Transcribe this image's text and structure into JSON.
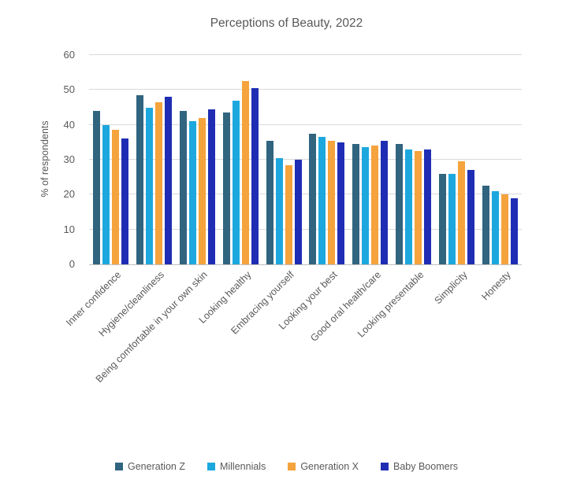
{
  "chart_data": {
    "type": "bar",
    "title": "Perceptions of Beauty, 2022",
    "xlabel": "",
    "ylabel": "% of respondents",
    "ylim": [
      0,
      60
    ],
    "yticks": [
      0,
      10,
      20,
      30,
      40,
      50,
      60
    ],
    "grid": true,
    "legend_position": "bottom",
    "text_color": "#595959",
    "gridline_color": "#d9d9d9",
    "axis_line_color": "#bfbfbf",
    "categories": [
      "Inner confidence",
      "Hygiene/cleanliness",
      "Being comfortable in your own skin",
      "Looking healthy",
      "Embracing yourself",
      "Looking your best",
      "Good oral health/care",
      "Looking presentable",
      "Simplicity",
      "Honesty"
    ],
    "series": [
      {
        "name": "Generation Z",
        "color": "#31647f",
        "values": [
          44,
          48.5,
          44,
          43.5,
          35.5,
          37.5,
          34.5,
          34.5,
          26,
          22.5
        ]
      },
      {
        "name": "Millennials",
        "color": "#1ca8de",
        "values": [
          40,
          45,
          41,
          47,
          30.5,
          36.5,
          33.5,
          33,
          26,
          21
        ]
      },
      {
        "name": "Generation X",
        "color": "#f5a33c",
        "values": [
          38.5,
          46.5,
          42,
          52.5,
          28.5,
          35.5,
          34,
          32.5,
          29.5,
          20
        ]
      },
      {
        "name": "Baby Boomers",
        "color": "#1f2db4",
        "values": [
          36,
          48,
          44.5,
          50.5,
          30,
          35,
          35.5,
          33,
          27,
          19
        ]
      }
    ]
  }
}
